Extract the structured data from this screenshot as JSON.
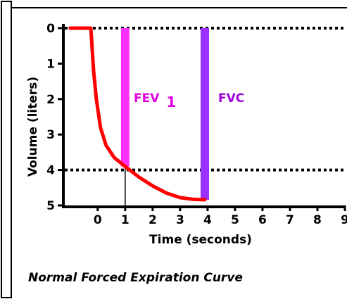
{
  "chart_data": {
    "type": "line",
    "caption": "Normal Forced Expiration Curve",
    "xlabel": "Time (seconds)",
    "ylabel": "Volume (liters)",
    "x_ticks": [
      "0",
      "1",
      "2",
      "3",
      "4",
      "5",
      "6",
      "7",
      "8",
      "9"
    ],
    "y_ticks": [
      "0",
      "1",
      "2",
      "3",
      "4",
      "5"
    ],
    "xlim": [
      -1.2,
      9
    ],
    "ylim": [
      0,
      5
    ],
    "y_inverted": true,
    "series": [
      {
        "values": [
          {
            "x": -1.0,
            "y": 0
          },
          {
            "x": -0.25,
            "y": 0
          },
          {
            "x": -0.15,
            "y": 1.2
          },
          {
            "x": -0.05,
            "y": 2.0
          },
          {
            "x": 0.1,
            "y": 2.8
          },
          {
            "x": 0.3,
            "y": 3.3
          },
          {
            "x": 0.6,
            "y": 3.65
          },
          {
            "x": 1.0,
            "y": 3.9
          },
          {
            "x": 1.5,
            "y": 4.2
          },
          {
            "x": 2.0,
            "y": 4.45
          },
          {
            "x": 2.5,
            "y": 4.65
          },
          {
            "x": 3.0,
            "y": 4.78
          },
          {
            "x": 3.5,
            "y": 4.83
          },
          {
            "x": 3.9,
            "y": 4.84
          }
        ],
        "color": "#ff0000"
      }
    ],
    "reference_lines": [
      {
        "axis": "y",
        "value": 0,
        "style": "dotted"
      },
      {
        "axis": "y",
        "value": 4,
        "style": "dotted"
      }
    ],
    "bars": [
      {
        "label": "FEV",
        "subscript": "1",
        "x": 1.0,
        "y_range": [
          0,
          3.9
        ],
        "color": "#ff30ff"
      },
      {
        "label": "FVC",
        "x": 3.9,
        "y_range": [
          0,
          4.84
        ],
        "color": "#9a30ff"
      }
    ],
    "guide": {
      "x": 1.0,
      "y_range": [
        3.9,
        5
      ]
    }
  }
}
